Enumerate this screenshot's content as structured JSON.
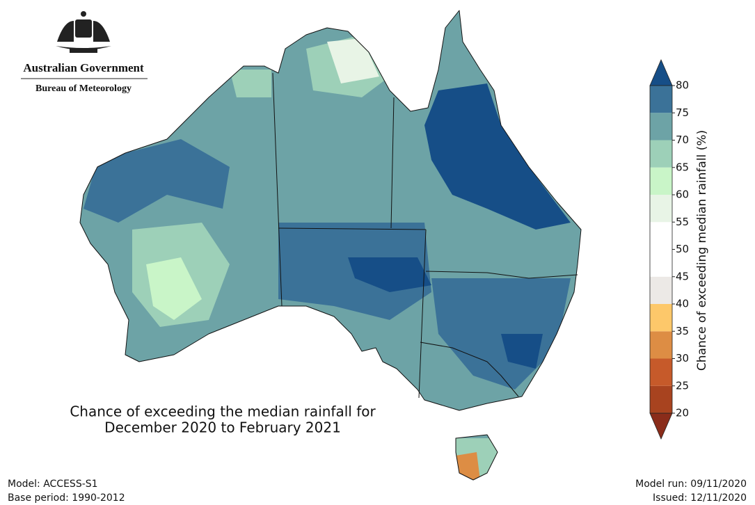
{
  "header": {
    "government": "Australian Government",
    "agency": "Bureau of Meteorology"
  },
  "map": {
    "title_lines": [
      "Chance of exceeding the median rainfall for",
      "December 2020 to February 2021"
    ]
  },
  "colorbar": {
    "label": "Chance of exceeding median rainfall (%)",
    "ticks": [
      20,
      25,
      30,
      35,
      40,
      45,
      50,
      55,
      60,
      65,
      70,
      75,
      80
    ],
    "colors": [
      "#a8431f",
      "#c65a2a",
      "#dd8d44",
      "#fdc86a",
      "#ece9e6",
      "#ffffff",
      "#ffffff",
      "#e8f4e6",
      "#c9f5c8",
      "#9dd0b8",
      "#6da3a6",
      "#3b7298"
    ],
    "under_color": "#8a2c1a",
    "over_color": "#164e87"
  },
  "footer": {
    "model": "Model: ACCESS-S1",
    "base_period": "Base period: 1990-2012",
    "model_run": "Model run: 09/11/2020",
    "issued": "Issued: 12/11/2020"
  }
}
